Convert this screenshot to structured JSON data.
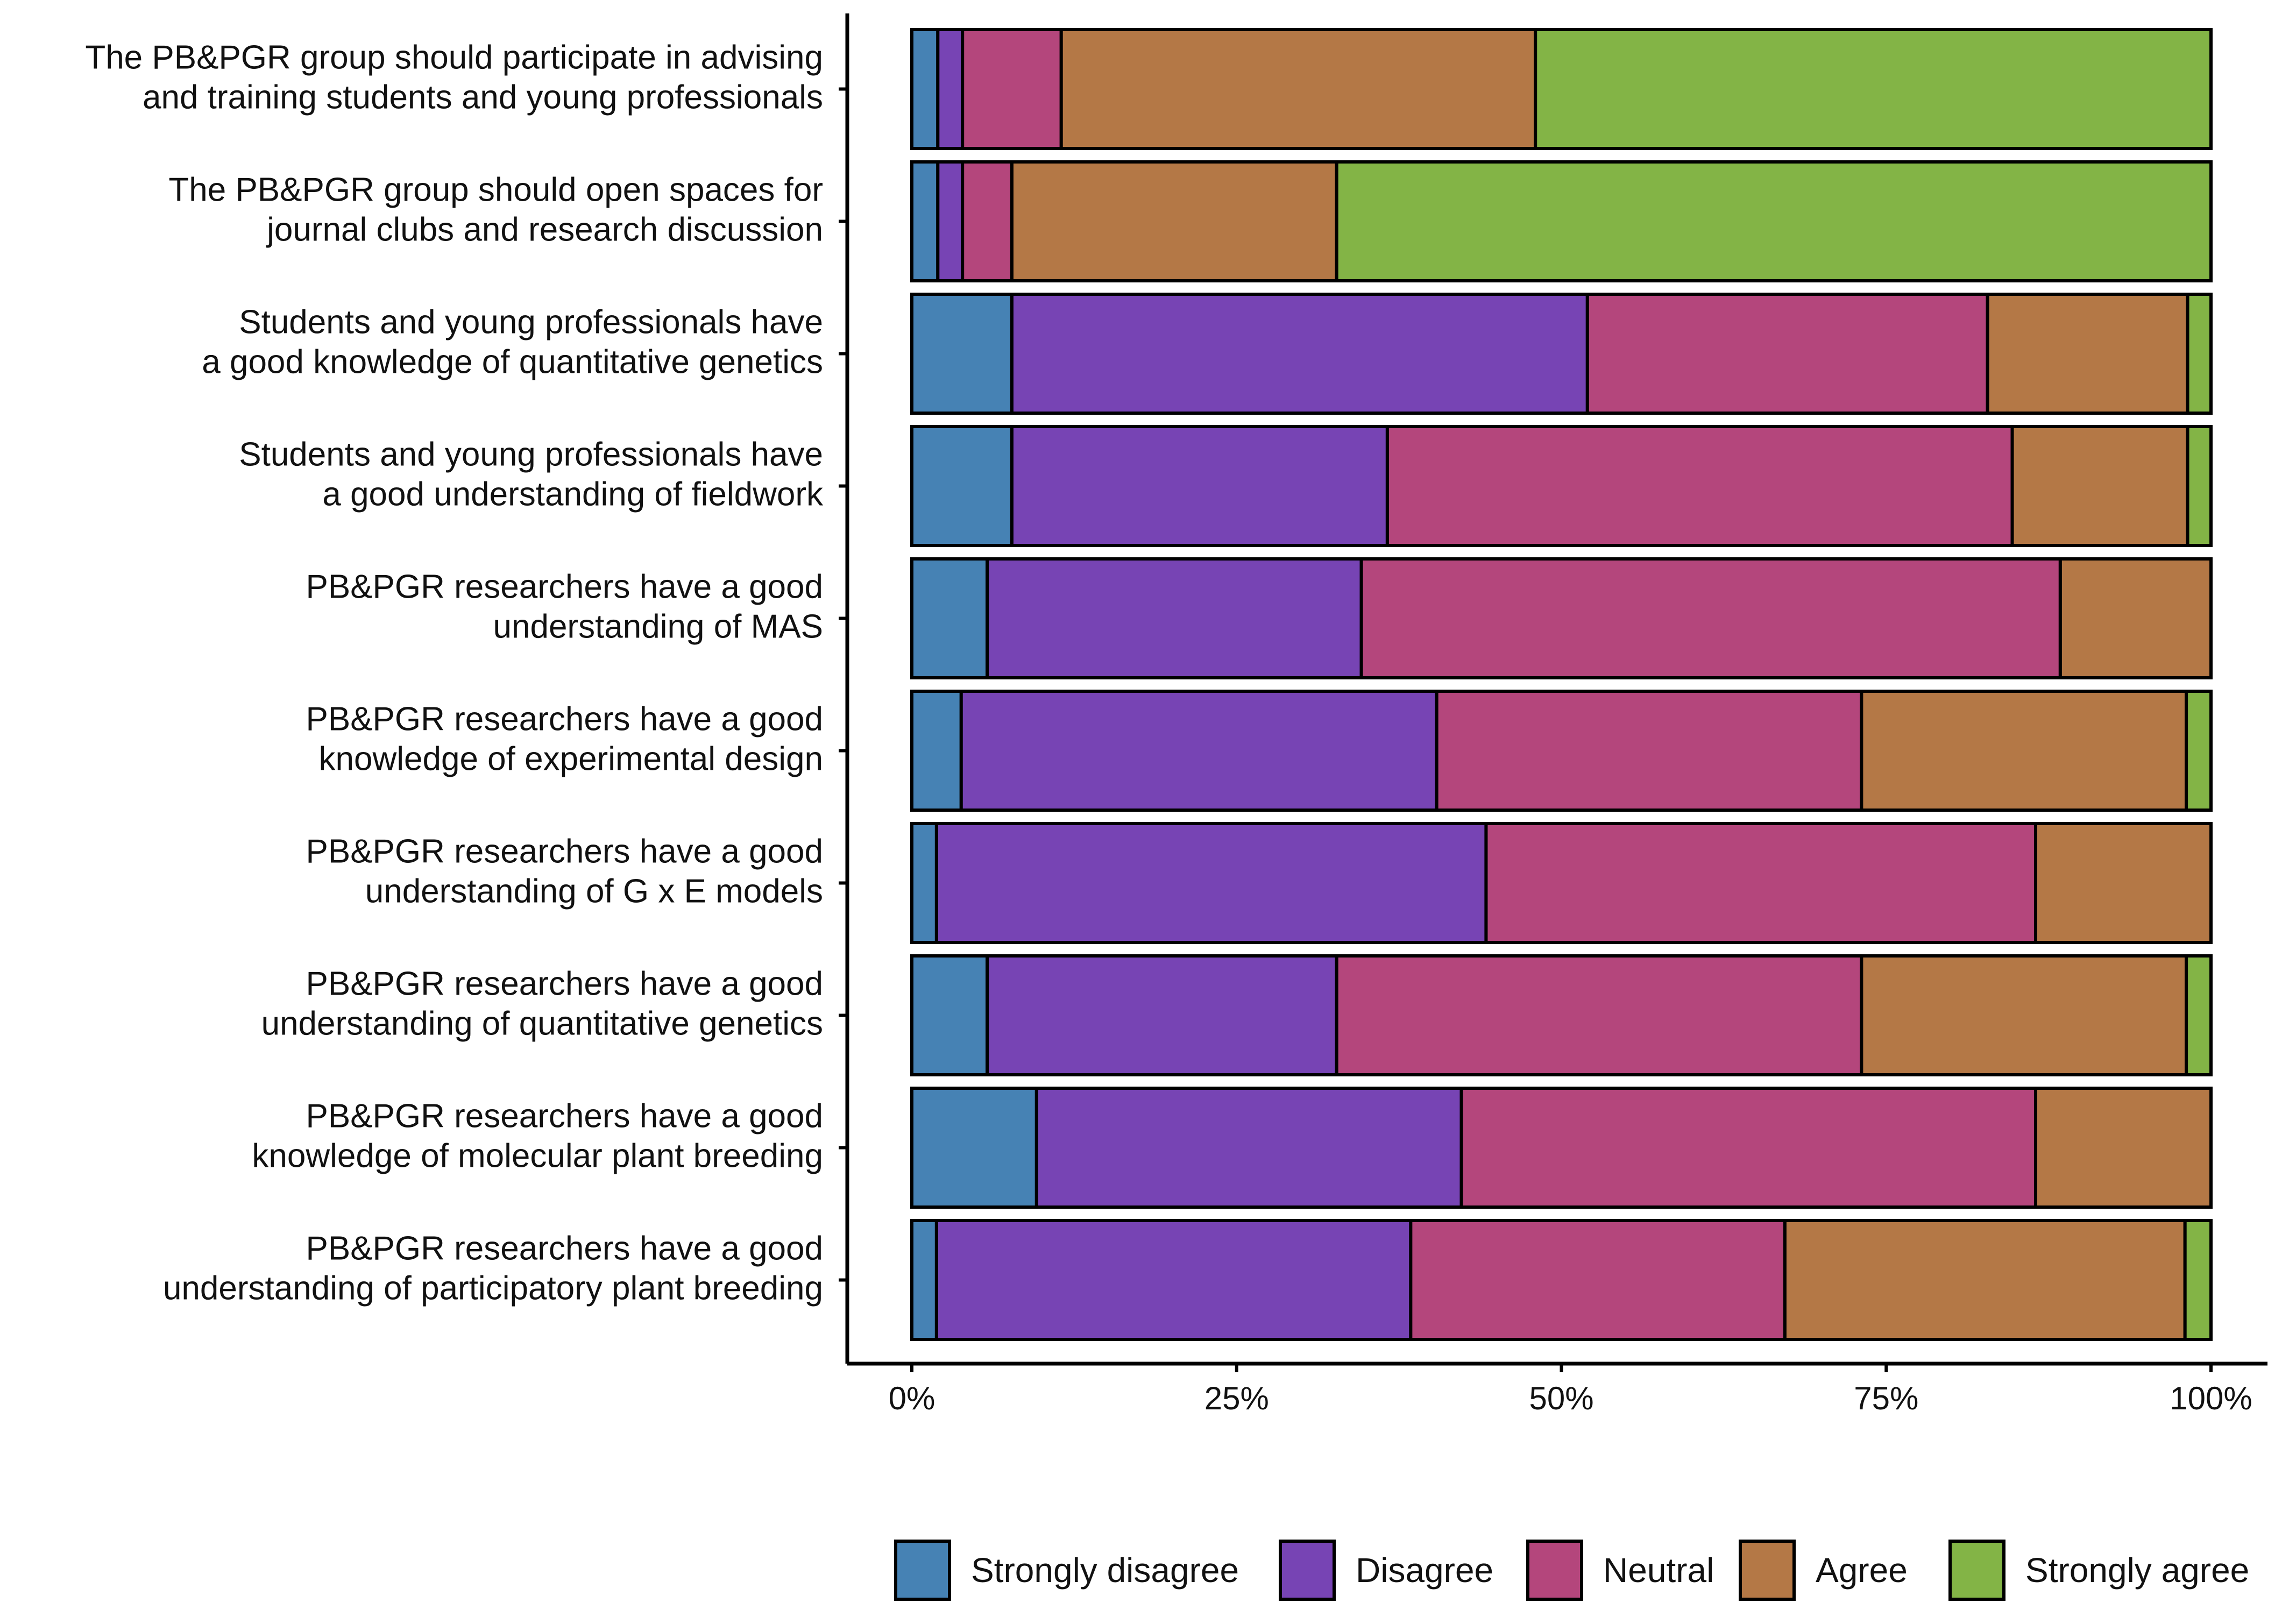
{
  "chart_data": {
    "type": "bar",
    "orientation": "horizontal",
    "stacked": true,
    "percent_scale": true,
    "title": "",
    "xlabel": "",
    "ylabel": "",
    "xlim": [
      0,
      100
    ],
    "grid": false,
    "legend_position": "bottom",
    "x_ticks": [
      {
        "value": 0,
        "label": "0%"
      },
      {
        "value": 25,
        "label": "25%"
      },
      {
        "value": 50,
        "label": "50%"
      },
      {
        "value": 75,
        "label": "75%"
      },
      {
        "value": 100,
        "label": "100%"
      }
    ],
    "categories": [
      [
        "The PB&PGR group should participate in advising",
        "and training students and young professionals"
      ],
      [
        "The PB&PGR group should open spaces for",
        "journal clubs and research discussion"
      ],
      [
        "Students and young professionals have",
        "a good knowledge of quantitative genetics"
      ],
      [
        "Students and young professionals have",
        "a good understanding of fieldwork"
      ],
      [
        "PB&PGR researchers have a good",
        "understanding of MAS"
      ],
      [
        "PB&PGR researchers have a good",
        "knowledge of experimental design"
      ],
      [
        "PB&PGR researchers have a good",
        "understanding of G x E models"
      ],
      [
        "PB&PGR researchers have a good",
        "understanding of quantitative genetics"
      ],
      [
        "PB&PGR researchers have a good",
        "knowledge of molecular plant breeding"
      ],
      [
        "PB&PGR researchers have a good",
        "understanding of participatory plant breeding"
      ]
    ],
    "series": [
      {
        "name": "Strongly disagree",
        "color": "#4682b4",
        "values": [
          2,
          2,
          7.7,
          7.7,
          5.8,
          3.8,
          1.9,
          5.8,
          9.6,
          1.9
        ]
      },
      {
        "name": "Disagree",
        "color": "#7744b4",
        "values": [
          1.9,
          1.9,
          44.3,
          28.9,
          28.8,
          36.6,
          42.3,
          26.9,
          32.7,
          36.5
        ]
      },
      {
        "name": "Neutral",
        "color": "#b4467c",
        "values": [
          7.6,
          3.8,
          30.8,
          48.1,
          53.8,
          32.7,
          42.3,
          40.4,
          44.2,
          28.8
        ]
      },
      {
        "name": "Agree",
        "color": "#b47846",
        "values": [
          36.5,
          25,
          15.4,
          13.5,
          11.6,
          25,
          13.5,
          25,
          13.5,
          30.8
        ]
      },
      {
        "name": "Strongly agree",
        "color": "#83b446",
        "values": [
          52,
          67.3,
          1.8,
          1.8,
          0,
          1.9,
          0,
          1.9,
          0,
          2
        ]
      }
    ]
  }
}
